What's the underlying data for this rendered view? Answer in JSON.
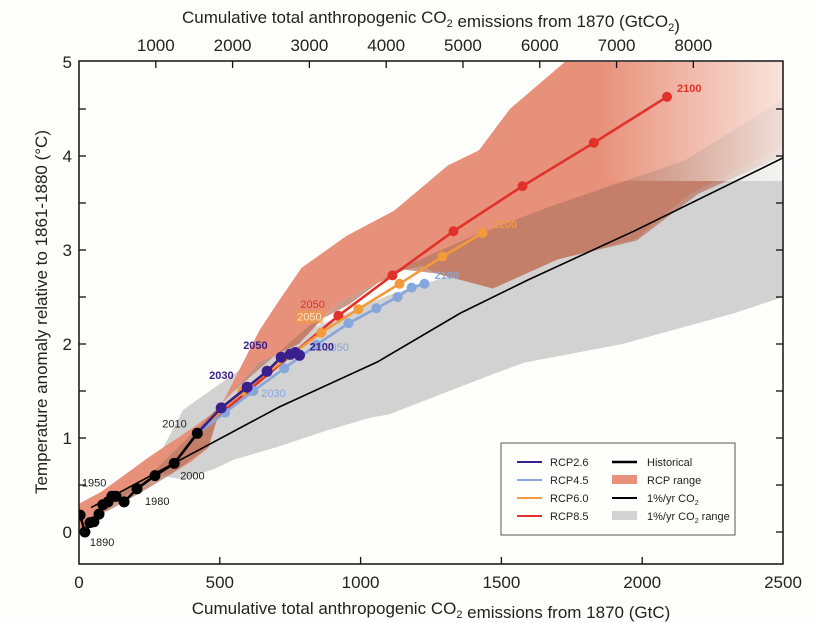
{
  "chart_data": {
    "type": "line",
    "title": "",
    "xlabel": "Cumulative total anthropogenic CO2 emissions from 1870 (GtC)",
    "xlabel_top": "Cumulative total anthropogenic CO2 emissions from 1870 (GtCO2)",
    "ylabel": "Temperature anomaly relative to 1861-1880 (°C)",
    "xlim": [
      0,
      2500
    ],
    "ylim": [
      -0.37,
      5
    ],
    "x_ticks": [
      0,
      500,
      1000,
      1500,
      2000,
      2500
    ],
    "x_top_ticks": [
      1000,
      2000,
      3000,
      4000,
      5000,
      6000,
      7000,
      8000
    ],
    "x_top_factor": 3.667,
    "y_ticks": [
      0,
      1,
      2,
      3,
      4,
      5
    ],
    "grid": false,
    "legend_position": "bottom-right",
    "colors": {
      "rcp26": "#3b1f8c",
      "rcp45": "#86a6dc",
      "rcp60": "#f39a3a",
      "rcp85": "#e0322a",
      "historical": "#000000",
      "rcp_range": "#e8917a",
      "rcp_overlap": "#b87a66",
      "pct_range": "#d2d2d2"
    },
    "legend": [
      {
        "label": "RCP2.6",
        "kind": "line",
        "key": "rcp26"
      },
      {
        "label": "RCP4.5",
        "kind": "line",
        "key": "rcp45"
      },
      {
        "label": "RCP6.0",
        "kind": "line",
        "key": "rcp60"
      },
      {
        "label": "RCP8.5",
        "kind": "line",
        "key": "rcp85"
      },
      {
        "label": "Historical",
        "kind": "thickline",
        "key": "historical"
      },
      {
        "label": "RCP range",
        "kind": "patch",
        "key": "rcp_range"
      },
      {
        "label": "1%/yr CO2",
        "kind": "line",
        "key": "historical"
      },
      {
        "label": "1%/yr CO2 range",
        "kind": "patch",
        "key": "pct_range"
      }
    ],
    "series": [
      {
        "name": "Historical",
        "key": "historical",
        "x": [
          4,
          21,
          39,
          53,
          71,
          85,
          103,
          117,
          131,
          160,
          206,
          270,
          338,
          420
        ],
        "y": [
          0.18,
          0.0,
          0.1,
          0.11,
          0.19,
          0.29,
          0.32,
          0.38,
          0.38,
          0.32,
          0.46,
          0.6,
          0.73,
          1.05
        ],
        "labels": [
          {
            "i": 1,
            "text": "1890"
          },
          {
            "i": 7,
            "text": "1950"
          },
          {
            "i": 10,
            "text": "1980"
          },
          {
            "i": 12,
            "text": "2000"
          },
          {
            "i": 13,
            "text": "2010"
          }
        ]
      },
      {
        "name": "RCP2.6",
        "key": "rcp26",
        "x": [
          420,
          505,
          597,
          668,
          718,
          750,
          768,
          783
        ],
        "y": [
          1.05,
          1.32,
          1.54,
          1.71,
          1.86,
          1.89,
          1.91,
          1.88
        ],
        "labels": [
          {
            "i": 2,
            "text": "2030"
          },
          {
            "i": 4,
            "text": "2050"
          },
          {
            "i": 7,
            "text": "2100"
          }
        ]
      },
      {
        "name": "RCP4.5",
        "key": "rcp45",
        "x": [
          420,
          519,
          619,
          729,
          843,
          957,
          1056,
          1131,
          1181,
          1227
        ],
        "y": [
          1.05,
          1.27,
          1.5,
          1.74,
          1.99,
          2.22,
          2.38,
          2.5,
          2.6,
          2.64
        ],
        "labels": [
          {
            "i": 2,
            "text": "2030"
          },
          {
            "i": 4,
            "text": "2050"
          },
          {
            "i": 9,
            "text": "2100"
          }
        ]
      },
      {
        "name": "RCP6.0",
        "key": "rcp60",
        "x": [
          420,
          580,
          860,
          992,
          1138,
          1291,
          1433
        ],
        "y": [
          1.05,
          1.5,
          2.12,
          2.37,
          2.64,
          2.93,
          3.18
        ],
        "labels": [
          {
            "i": 2,
            "text": "2050"
          },
          {
            "i": 6,
            "text": "2100"
          }
        ]
      },
      {
        "name": "RCP8.5",
        "key": "rcp85",
        "x": [
          420,
          600,
          921,
          1113,
          1330,
          1575,
          1828,
          2088
        ],
        "y": [
          1.05,
          1.5,
          2.3,
          2.73,
          3.2,
          3.68,
          4.14,
          4.63
        ],
        "labels": [
          {
            "i": 2,
            "text": "2050"
          },
          {
            "i": 7,
            "text": "2100"
          }
        ]
      },
      {
        "name": "1%/yr CO2",
        "key": "historical",
        "x": [
          43,
          711,
          1060,
          1355,
          1593,
          1970,
          2500
        ],
        "y": [
          0.26,
          1.33,
          1.81,
          2.33,
          2.68,
          3.2,
          3.98
        ]
      }
    ],
    "ranges": [
      {
        "name": "1%/yr CO2 range",
        "key": "pct_range",
        "upper": [
          [
            250,
            0.62
          ],
          [
            370,
            1.3
          ],
          [
            700,
            2.0
          ],
          [
            1100,
            2.52
          ],
          [
            1500,
            2.9
          ],
          [
            1800,
            3.35
          ],
          [
            2300,
            4.7
          ],
          [
            2500,
            5.0
          ]
        ],
        "lower": [
          [
            2500,
            2.5
          ],
          [
            2330,
            2.33
          ],
          [
            1930,
            2.0
          ],
          [
            1580,
            1.8
          ],
          [
            1470,
            1.68
          ],
          [
            1100,
            1.25
          ],
          [
            1040,
            1.22
          ],
          [
            880,
            1.08
          ],
          [
            700,
            0.9
          ],
          [
            550,
            0.77
          ],
          [
            480,
            0.67
          ],
          [
            370,
            0.56
          ],
          [
            250,
            0.62
          ]
        ]
      },
      {
        "name": "RCP range",
        "key": "rcp_range",
        "upper": [
          [
            0,
            0.3
          ],
          [
            80,
            0.43
          ],
          [
            250,
            0.8
          ],
          [
            400,
            1.1
          ],
          [
            500,
            1.32
          ],
          [
            640,
            2.14
          ],
          [
            710,
            2.46
          ],
          [
            790,
            2.81
          ],
          [
            950,
            3.15
          ],
          [
            1120,
            3.42
          ],
          [
            1310,
            3.9
          ],
          [
            1420,
            4.06
          ],
          [
            1530,
            4.5
          ],
          [
            1725,
            5.0
          ],
          [
            2300,
            5.0
          ]
        ],
        "lower": [
          [
            2300,
            5.0
          ],
          [
            2500,
            5.0
          ],
          [
            2500,
            4.1
          ],
          [
            2170,
            3.6
          ],
          [
            1980,
            3.12
          ],
          [
            1700,
            2.9
          ],
          [
            1470,
            2.59
          ],
          [
            1270,
            2.75
          ],
          [
            1220,
            2.83
          ],
          [
            1155,
            2.79
          ],
          [
            920,
            2.44
          ],
          [
            800,
            2.07
          ],
          [
            780,
            2.0
          ],
          [
            640,
            1.8
          ],
          [
            510,
            1.38
          ],
          [
            500,
            1.35
          ],
          [
            460,
            0.9
          ],
          [
            400,
            0.75
          ],
          [
            333,
            0.63
          ],
          [
            260,
            0.58
          ],
          [
            200,
            0.45
          ],
          [
            120,
            0.3
          ],
          [
            60,
            0.1
          ],
          [
            0,
            0.0
          ]
        ]
      },
      {
        "name": "RCP overlap",
        "key": "rcp_overlap",
        "upper": [
          [
            70,
            0.3
          ],
          [
            250,
            0.6
          ],
          [
            420,
            1.1
          ],
          [
            550,
            1.5
          ],
          [
            820,
            2.2
          ],
          [
            960,
            2.42
          ],
          [
            1120,
            2.78
          ],
          [
            1400,
            3.15
          ],
          [
            1680,
            3.47
          ],
          [
            2150,
            3.95
          ],
          [
            2500,
            4.6
          ]
        ],
        "lower": [
          [
            2500,
            4.0
          ],
          [
            2200,
            3.6
          ],
          [
            1980,
            3.1
          ],
          [
            1700,
            2.9
          ],
          [
            1470,
            2.59
          ],
          [
            1270,
            2.75
          ],
          [
            1155,
            2.79
          ],
          [
            920,
            2.44
          ],
          [
            780,
            2.0
          ],
          [
            640,
            1.8
          ],
          [
            510,
            1.38
          ],
          [
            460,
            0.9
          ],
          [
            330,
            0.62
          ],
          [
            220,
            0.42
          ],
          [
            100,
            0.22
          ],
          [
            70,
            0.3
          ]
        ]
      }
    ]
  }
}
